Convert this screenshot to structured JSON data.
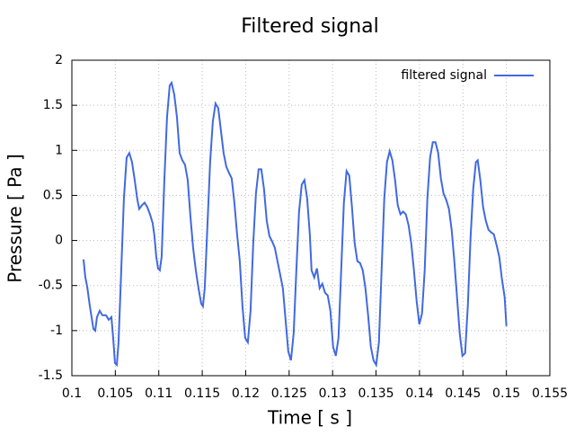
{
  "chart_data": {
    "type": "line",
    "title": "Filtered signal",
    "x_label": "Time [ s ]",
    "y_label": "Pressure [ Pa ]",
    "xlim": [
      0.1,
      0.155
    ],
    "xticks": [
      0.1,
      0.105,
      0.11,
      0.115,
      0.12,
      0.125,
      0.13,
      0.135,
      0.14,
      0.145,
      0.15,
      0.155
    ],
    "ylim": [
      -1.5,
      2
    ],
    "yticks": [
      -1.5,
      -1,
      -0.5,
      0,
      0.5,
      1,
      1.5,
      2
    ],
    "grid": true,
    "legend": "top-right",
    "series": [
      {
        "name": "filtered signal",
        "color": "#4169e1",
        "x": [
          0.10134,
          0.10155,
          0.10176,
          0.10207,
          0.10248,
          0.10269,
          0.10289,
          0.1032,
          0.10351,
          0.10393,
          0.10424,
          0.10455,
          0.10475,
          0.10496,
          0.10517,
          0.10537,
          0.10568,
          0.10599,
          0.1063,
          0.10661,
          0.10692,
          0.10723,
          0.10754,
          0.10775,
          0.10806,
          0.10837,
          0.10868,
          0.10899,
          0.1093,
          0.1095,
          0.10971,
          0.10992,
          0.11012,
          0.11033,
          0.11064,
          0.11095,
          0.11126,
          0.11147,
          0.11178,
          0.11209,
          0.1124,
          0.11271,
          0.11302,
          0.11333,
          0.11364,
          0.11395,
          0.11426,
          0.11457,
          0.11488,
          0.11508,
          0.11529,
          0.1156,
          0.11591,
          0.11622,
          0.11653,
          0.11684,
          0.11715,
          0.11746,
          0.11777,
          0.11808,
          0.11839,
          0.1187,
          0.11901,
          0.11932,
          0.11963,
          0.11994,
          0.12025,
          0.12056,
          0.12087,
          0.12118,
          0.12149,
          0.1218,
          0.12211,
          0.12242,
          0.12273,
          0.12304,
          0.12335,
          0.12366,
          0.12397,
          0.12428,
          0.12459,
          0.1249,
          0.12521,
          0.12552,
          0.12583,
          0.12614,
          0.12645,
          0.12676,
          0.12707,
          0.12738,
          0.12758,
          0.12789,
          0.1282,
          0.12851,
          0.12882,
          0.12913,
          0.12944,
          0.12975,
          0.13006,
          0.13037,
          0.13068,
          0.13099,
          0.1313,
          0.13161,
          0.13192,
          0.13223,
          0.13254,
          0.13285,
          0.13316,
          0.13347,
          0.13378,
          0.13409,
          0.1344,
          0.13471,
          0.13502,
          0.13533,
          0.13564,
          0.13595,
          0.13626,
          0.13657,
          0.13688,
          0.13719,
          0.1375,
          0.13781,
          0.13812,
          0.13843,
          0.13874,
          0.13905,
          0.13936,
          0.13967,
          0.13998,
          0.14029,
          0.1406,
          0.14091,
          0.14122,
          0.14153,
          0.14184,
          0.14215,
          0.14246,
          0.14277,
          0.14308,
          0.14339,
          0.1437,
          0.14401,
          0.14432,
          0.14463,
          0.14494,
          0.14525,
          0.14556,
          0.14587,
          0.14618,
          0.14649,
          0.1467,
          0.147,
          0.14732,
          0.14763,
          0.14794,
          0.14825,
          0.14855,
          0.14887,
          0.14918,
          0.14949,
          0.1498,
          0.15
        ],
        "values": [
          -0.21,
          -0.41,
          -0.51,
          -0.73,
          -0.98,
          -1.0,
          -0.85,
          -0.78,
          -0.83,
          -0.83,
          -0.88,
          -0.85,
          -1.08,
          -1.36,
          -1.38,
          -1.13,
          -0.33,
          0.47,
          0.92,
          0.97,
          0.87,
          0.67,
          0.45,
          0.35,
          0.39,
          0.42,
          0.37,
          0.29,
          0.19,
          0.05,
          -0.18,
          -0.31,
          -0.33,
          -0.18,
          0.67,
          1.37,
          1.72,
          1.75,
          1.62,
          1.37,
          0.97,
          0.89,
          0.84,
          0.67,
          0.27,
          -0.08,
          -0.33,
          -0.53,
          -0.7,
          -0.73,
          -0.53,
          0.17,
          0.87,
          1.32,
          1.52,
          1.47,
          1.22,
          0.97,
          0.82,
          0.75,
          0.69,
          0.42,
          0.07,
          -0.23,
          -0.73,
          -1.08,
          -1.13,
          -0.78,
          -0.03,
          0.52,
          0.79,
          0.79,
          0.57,
          0.22,
          0.05,
          -0.01,
          -0.08,
          -0.23,
          -0.38,
          -0.53,
          -0.88,
          -1.23,
          -1.33,
          -1.03,
          -0.33,
          0.32,
          0.62,
          0.67,
          0.47,
          0.07,
          -0.33,
          -0.41,
          -0.31,
          -0.53,
          -0.48,
          -0.58,
          -0.61,
          -0.78,
          -1.18,
          -1.28,
          -1.08,
          -0.33,
          0.42,
          0.77,
          0.72,
          0.37,
          -0.03,
          -0.23,
          -0.25,
          -0.33,
          -0.53,
          -0.83,
          -1.18,
          -1.33,
          -1.38,
          -1.13,
          -0.33,
          0.47,
          0.87,
          0.99,
          0.89,
          0.67,
          0.39,
          0.29,
          0.32,
          0.29,
          0.17,
          -0.03,
          -0.33,
          -0.67,
          -0.93,
          -0.81,
          -0.33,
          0.47,
          0.92,
          1.09,
          1.09,
          0.97,
          0.69,
          0.52,
          0.45,
          0.35,
          0.12,
          -0.23,
          -0.63,
          -1.03,
          -1.28,
          -1.25,
          -0.73,
          0.02,
          0.57,
          0.87,
          0.89,
          0.67,
          0.37,
          0.22,
          0.12,
          0.09,
          0.07,
          -0.05,
          -0.18,
          -0.43,
          -0.63,
          -0.95
        ]
      }
    ]
  }
}
